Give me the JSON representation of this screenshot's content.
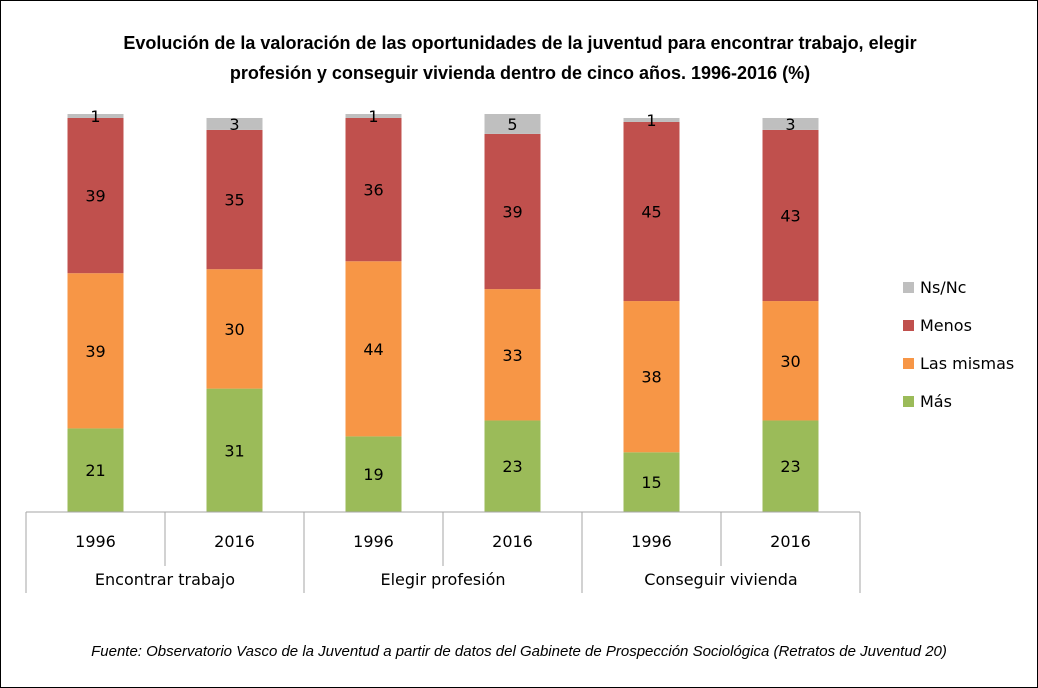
{
  "chart_data": {
    "type": "bar",
    "stacked": true,
    "title_lines": [
      "Evolución de la valoración de las oportunidades de la juventud para encontrar trabajo, elegir",
      "profesión y conseguir vivienda dentro de cinco años. 1996-2016 (%)"
    ],
    "groups": [
      {
        "label": "Encontrar trabajo",
        "categories": [
          "1996",
          "2016"
        ]
      },
      {
        "label": "Elegir profesión",
        "categories": [
          "1996",
          "2016"
        ]
      },
      {
        "label": "Conseguir vivienda",
        "categories": [
          "1996",
          "2016"
        ]
      }
    ],
    "series": [
      {
        "name": "Más",
        "color": "#9BBB59",
        "values": [
          21,
          31,
          19,
          23,
          15,
          23
        ]
      },
      {
        "name": "Las mismas",
        "color": "#F79646",
        "values": [
          39,
          30,
          44,
          33,
          38,
          30
        ]
      },
      {
        "name": "Menos",
        "color": "#C0504D",
        "values": [
          39,
          35,
          36,
          39,
          45,
          43
        ]
      },
      {
        "name": "Ns/Nc",
        "color": "#BFBFBF",
        "values": [
          1,
          3,
          1,
          5,
          1,
          3
        ]
      }
    ],
    "ylim": [
      0,
      100
    ],
    "grid": false,
    "legend": "right"
  },
  "source": "Fuente: Observatorio Vasco de la Juventud a partir de datos del Gabinete de Prospección Sociológica (Retratos de Juventud 20)"
}
